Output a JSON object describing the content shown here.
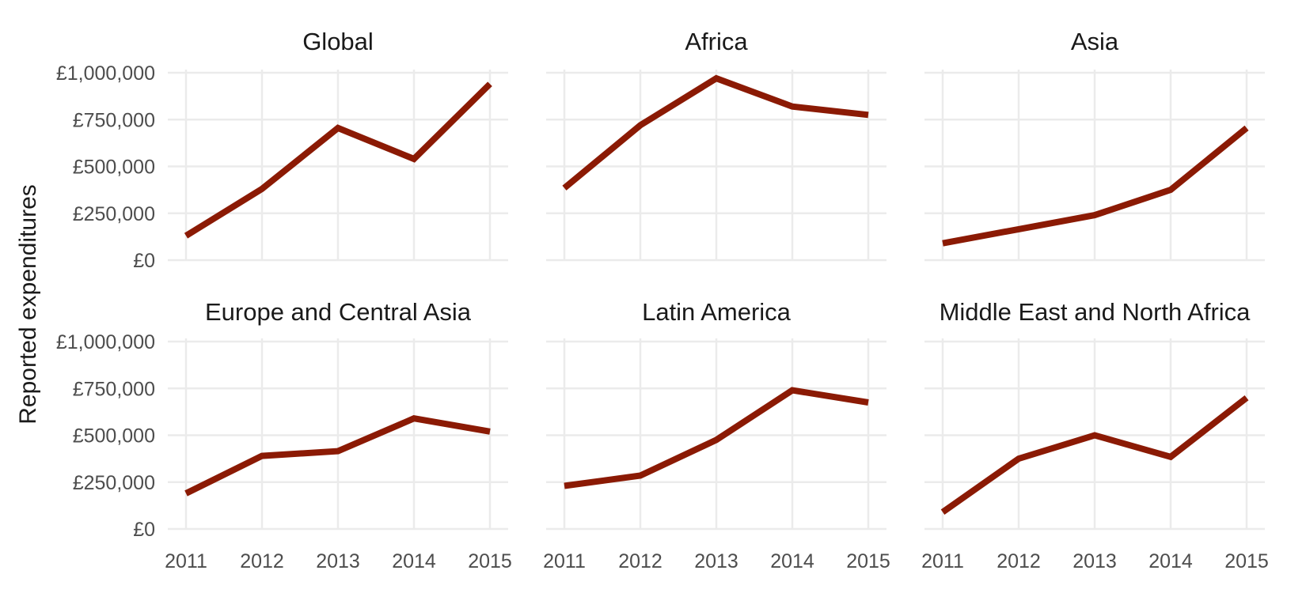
{
  "chart_data": {
    "type": "line",
    "ylabel": "Reported expenditures",
    "x": [
      2011,
      2012,
      2013,
      2014,
      2015
    ],
    "x_tick_labels": [
      "2011",
      "2012",
      "2013",
      "2014",
      "2015"
    ],
    "y_ticks": [
      0,
      250000,
      500000,
      750000,
      1000000
    ],
    "y_tick_labels": [
      "£0",
      "£250,000",
      "£500,000",
      "£750,000",
      "£1,000,000"
    ],
    "ylim": [
      0,
      1000000
    ],
    "grid": true,
    "line_color": "#8b1a04",
    "panels": [
      {
        "title": "Global",
        "values": [
          130000,
          380000,
          705000,
          540000,
          940000
        ]
      },
      {
        "title": "Africa",
        "values": [
          385000,
          720000,
          970000,
          820000,
          775000
        ]
      },
      {
        "title": "Asia",
        "values": [
          90000,
          165000,
          240000,
          375000,
          705000
        ]
      },
      {
        "title": "Europe and Central Asia",
        "values": [
          190000,
          390000,
          415000,
          590000,
          520000
        ]
      },
      {
        "title": "Latin America",
        "values": [
          230000,
          285000,
          475000,
          740000,
          675000
        ]
      },
      {
        "title": "Middle East and North Africa",
        "values": [
          90000,
          375000,
          500000,
          385000,
          700000
        ]
      }
    ]
  }
}
